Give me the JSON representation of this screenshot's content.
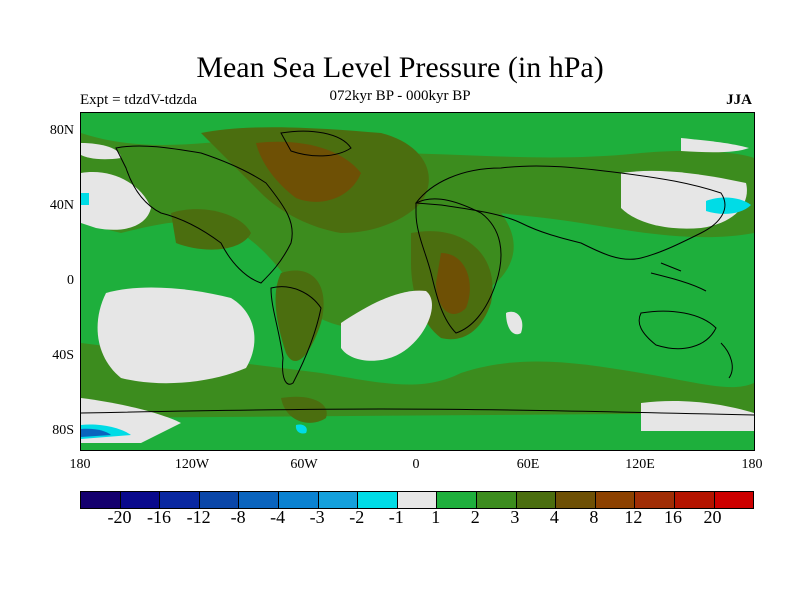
{
  "title": "Mean Sea Level Pressure (in hPa)",
  "subtitle": "072kyr BP - 000kyr BP",
  "experiment": "Expt = tdzdV-tdzda",
  "season": "JJA",
  "lat_labels": [
    "80N",
    "40N",
    "0",
    "40S",
    "80S"
  ],
  "lon_labels": [
    "180",
    "120W",
    "60W",
    "0",
    "60E",
    "120E",
    "180"
  ],
  "colorbar": {
    "colors": [
      "#14006e",
      "#0a0a8c",
      "#0a28a0",
      "#0a46a8",
      "#0a64be",
      "#0a82d2",
      "#14a0dc",
      "#00dce6",
      "#e6e6e6",
      "#1eaf3c",
      "#3c8c1e",
      "#4b6e0f",
      "#6e5005",
      "#8c4100",
      "#a02d05",
      "#b41400",
      "#cd0000"
    ],
    "labels": [
      "-20",
      "-16",
      "-12",
      "-8",
      "-4",
      "-3",
      "-2",
      "-1",
      "1",
      "2",
      "3",
      "4",
      "8",
      "12",
      "16",
      "20"
    ]
  },
  "map_colors": {
    "ocean_base": "#1eaf3c",
    "mid": "#3c8c1e",
    "olive": "#4b6e0f",
    "brown": "#6e5005",
    "darkbrown": "#8c4100",
    "neutral": "#e6e6e6",
    "cyan": "#00dce6",
    "blue": "#0a64be"
  }
}
